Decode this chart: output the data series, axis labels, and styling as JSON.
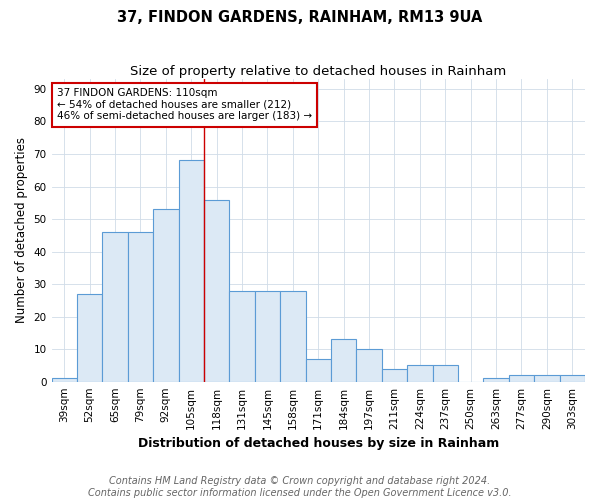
{
  "title": "37, FINDON GARDENS, RAINHAM, RM13 9UA",
  "subtitle": "Size of property relative to detached houses in Rainham",
  "xlabel": "Distribution of detached houses by size in Rainham",
  "ylabel": "Number of detached properties",
  "categories": [
    "39sqm",
    "52sqm",
    "65sqm",
    "79sqm",
    "92sqm",
    "105sqm",
    "118sqm",
    "131sqm",
    "145sqm",
    "158sqm",
    "171sqm",
    "184sqm",
    "197sqm",
    "211sqm",
    "224sqm",
    "237sqm",
    "250sqm",
    "263sqm",
    "277sqm",
    "290sqm",
    "303sqm"
  ],
  "values": [
    1,
    27,
    46,
    46,
    53,
    68,
    56,
    28,
    28,
    28,
    7,
    13,
    10,
    4,
    5,
    5,
    0,
    1,
    2,
    2,
    2
  ],
  "bar_color": "#dce9f5",
  "bar_edge_color": "#5b9bd5",
  "vline_color": "#cc0000",
  "vline_x": 5.5,
  "annotation_line1": "37 FINDON GARDENS: 110sqm",
  "annotation_line2": "← 54% of detached houses are smaller (212)",
  "annotation_line3": "46% of semi-detached houses are larger (183) →",
  "annotation_box_color": "#ffffff",
  "annotation_box_edge": "#cc0000",
  "ylim": [
    0,
    93
  ],
  "yticks": [
    0,
    10,
    20,
    30,
    40,
    50,
    60,
    70,
    80,
    90
  ],
  "footer1": "Contains HM Land Registry data © Crown copyright and database right 2024.",
  "footer2": "Contains public sector information licensed under the Open Government Licence v3.0.",
  "background_color": "#ffffff",
  "grid_color": "#d0dce8",
  "title_fontsize": 10.5,
  "subtitle_fontsize": 9.5,
  "axis_label_fontsize": 8.5,
  "tick_fontsize": 7.5,
  "footer_fontsize": 7,
  "annot_fontsize": 7.5
}
